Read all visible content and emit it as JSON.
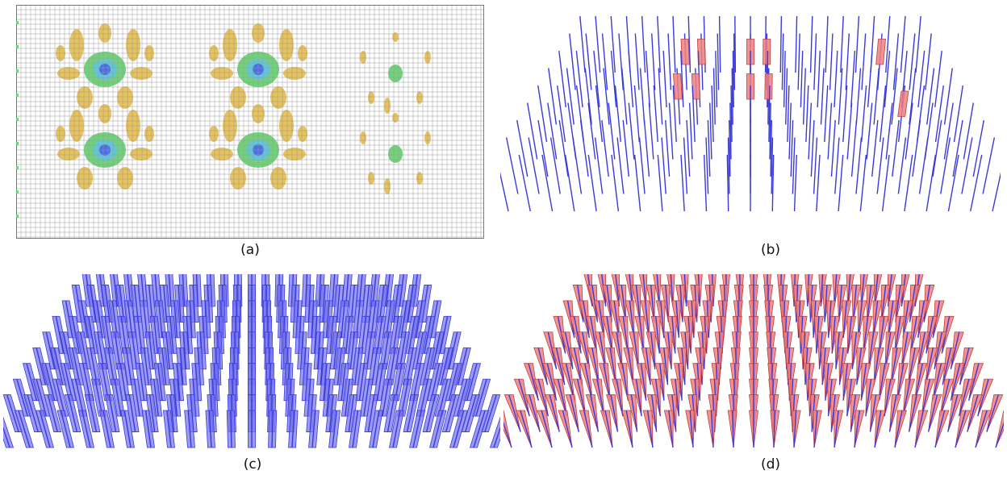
{
  "figure": {
    "panels": [
      {
        "id": "a",
        "caption": "(a)",
        "content": "contour-mesh"
      },
      {
        "id": "b",
        "caption": "(b)",
        "content": "sparse-blue-lines-with-red-plates"
      },
      {
        "id": "c",
        "caption": "(c)",
        "content": "dense-blue-plates"
      },
      {
        "id": "d",
        "caption": "(d)",
        "content": "dense-red-triangular-plates"
      }
    ]
  },
  "colors": {
    "mesh_line": "#9a9a9a",
    "contour_yellow": "#e8c25a",
    "contour_green": "#6fd37a",
    "contour_cyan": "#5fc7d9",
    "contour_blue": "#4a6ee8",
    "blue_member": "#3a3ad8",
    "blue_plate": "#7a7af0",
    "red_plate": "#f08080",
    "red_edge": "#c04040"
  }
}
